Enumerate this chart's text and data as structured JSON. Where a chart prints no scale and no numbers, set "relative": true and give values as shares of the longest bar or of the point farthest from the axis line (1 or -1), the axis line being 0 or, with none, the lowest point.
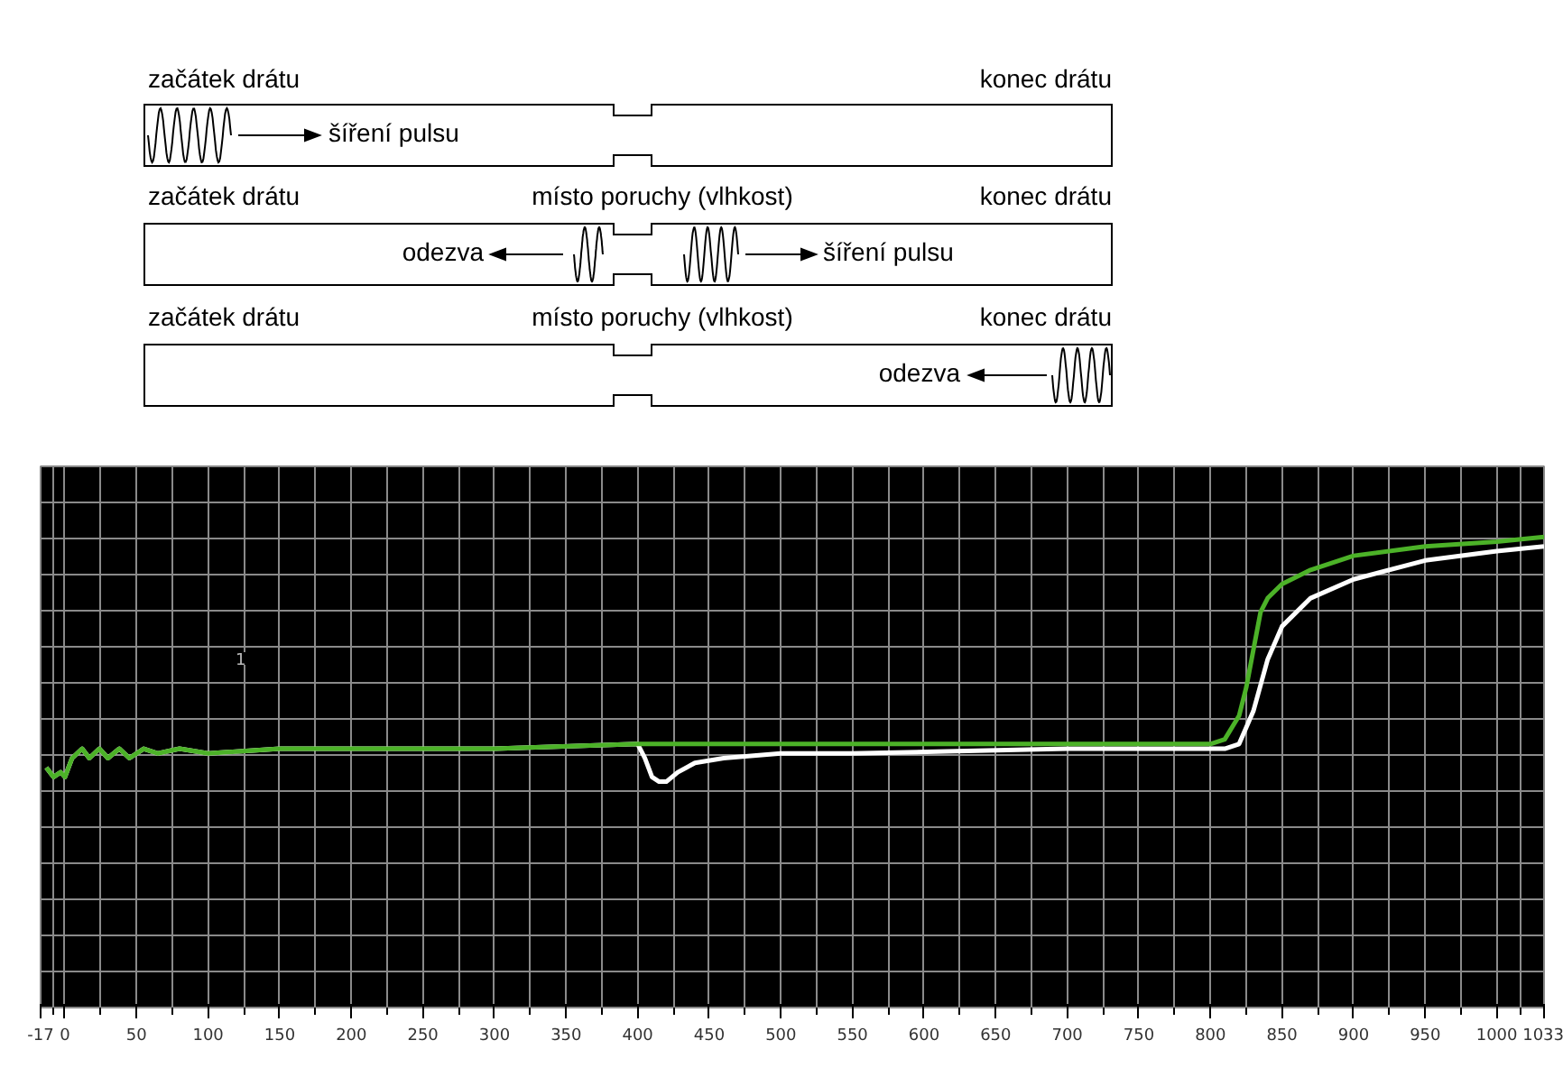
{
  "chart_data": {
    "type": "line",
    "relative": true,
    "annotations": [
      "začátek drátu",
      "konec drátu",
      "šíření pulsu",
      "začátek drátu",
      "místo poruchy (vlhkost)",
      "konec drátu",
      "odezva",
      "šíření pulsu",
      "začátek drátu",
      "místo poruchy (vlhkost)",
      "konec drátu",
      "odezva",
      "1"
    ],
    "xlim": [
      -17,
      1033
    ],
    "xticks": [
      {
        "value": -17,
        "label": "-17"
      },
      0,
      50,
      100,
      150,
      200,
      250,
      300,
      350,
      400,
      450,
      500,
      550,
      600,
      650,
      700,
      750,
      800,
      850,
      900,
      950,
      1000,
      1033
    ],
    "grid": true,
    "line_style": "solid",
    "series": [
      {
        "color": "#ffffff",
        "x": [
          -13,
          -8,
          -3,
          0,
          5,
          12,
          17,
          24,
          30,
          38,
          45,
          55,
          65,
          80,
          100,
          150,
          200,
          300,
          400,
          405,
          410,
          415,
          420,
          428,
          440,
          460,
          500,
          550,
          700,
          810,
          820,
          830,
          840,
          850,
          870,
          900,
          950,
          1000,
          1033
        ],
        "values": [
          0.51,
          0.49,
          0.5,
          0.49,
          0.53,
          0.55,
          0.53,
          0.55,
          0.53,
          0.55,
          0.53,
          0.55,
          0.54,
          0.55,
          0.54,
          0.55,
          0.55,
          0.55,
          0.56,
          0.53,
          0.49,
          0.48,
          0.48,
          0.5,
          0.52,
          0.53,
          0.54,
          0.54,
          0.55,
          0.55,
          0.56,
          0.63,
          0.74,
          0.81,
          0.87,
          0.91,
          0.95,
          0.97,
          0.98
        ]
      },
      {
        "color": "#4cb228",
        "x": [
          -13,
          -8,
          -3,
          0,
          5,
          12,
          17,
          24,
          30,
          38,
          45,
          55,
          65,
          80,
          100,
          150,
          200,
          300,
          400,
          450,
          500,
          600,
          700,
          800,
          810,
          820,
          825,
          830,
          835,
          840,
          850,
          870,
          900,
          950,
          1000,
          1033
        ],
        "values": [
          0.51,
          0.49,
          0.5,
          0.49,
          0.53,
          0.55,
          0.53,
          0.55,
          0.53,
          0.55,
          0.53,
          0.55,
          0.54,
          0.55,
          0.54,
          0.55,
          0.55,
          0.55,
          0.56,
          0.56,
          0.56,
          0.56,
          0.56,
          0.56,
          0.57,
          0.62,
          0.68,
          0.76,
          0.84,
          0.87,
          0.9,
          0.93,
          0.96,
          0.98,
          0.99,
          1.0
        ]
      }
    ]
  }
}
